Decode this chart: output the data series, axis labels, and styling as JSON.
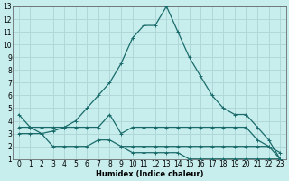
{
  "xlabel": "Humidex (Indice chaleur)",
  "bg_color": "#c8eded",
  "grid_color": "#b0d8d8",
  "line_color": "#1a6b6b",
  "xlim": [
    -0.5,
    23.5
  ],
  "ylim": [
    1,
    13
  ],
  "xticks": [
    0,
    1,
    2,
    3,
    4,
    5,
    6,
    7,
    8,
    9,
    10,
    11,
    12,
    13,
    14,
    15,
    16,
    17,
    18,
    19,
    20,
    21,
    22,
    23
  ],
  "yticks": [
    1,
    2,
    3,
    4,
    5,
    6,
    7,
    8,
    9,
    10,
    11,
    12,
    13
  ],
  "line1_x": [
    0,
    1,
    2,
    3,
    4,
    5,
    6,
    7,
    8,
    9,
    10,
    11,
    12,
    13,
    14,
    15,
    16,
    17,
    18,
    19,
    20,
    21,
    22,
    23
  ],
  "line1_y": [
    4.5,
    3.5,
    3.0,
    3.2,
    3.5,
    4.0,
    5.0,
    6.0,
    7.0,
    8.5,
    10.5,
    11.5,
    11.5,
    13.0,
    11.0,
    9.0,
    7.5,
    6.0,
    5.0,
    4.5,
    4.5,
    3.5,
    2.5,
    1.0
  ],
  "line2_x": [
    0,
    1,
    2,
    3,
    4,
    5,
    6,
    7,
    8,
    9,
    10,
    11,
    12,
    13,
    14,
    15,
    16,
    17,
    18,
    19,
    20,
    21,
    22,
    23
  ],
  "line2_y": [
    3.0,
    3.0,
    3.0,
    2.0,
    2.0,
    2.0,
    2.0,
    2.5,
    2.5,
    2.0,
    2.0,
    2.0,
    2.0,
    2.0,
    2.0,
    2.0,
    2.0,
    2.0,
    2.0,
    2.0,
    2.0,
    2.0,
    2.0,
    1.5
  ],
  "line3_x": [
    0,
    1,
    2,
    3,
    4,
    5,
    6,
    7,
    8,
    9,
    10,
    11,
    12,
    13,
    14,
    15,
    16,
    17,
    18,
    19,
    20,
    21,
    22,
    23
  ],
  "line3_y": [
    3.5,
    3.5,
    3.5,
    3.5,
    3.5,
    3.5,
    3.5,
    3.5,
    4.5,
    3.0,
    3.5,
    3.5,
    3.5,
    3.5,
    3.5,
    3.5,
    3.5,
    3.5,
    3.5,
    3.5,
    3.5,
    2.5,
    2.0,
    1.0
  ],
  "line4_x": [
    9,
    10,
    11,
    12,
    13,
    14,
    15,
    16,
    17,
    18,
    19,
    20,
    21,
    22,
    23
  ],
  "line4_y": [
    2.0,
    1.5,
    1.5,
    1.5,
    1.5,
    1.5,
    1.0,
    1.0,
    1.0,
    1.0,
    1.0,
    1.0,
    1.0,
    1.0,
    1.0
  ]
}
